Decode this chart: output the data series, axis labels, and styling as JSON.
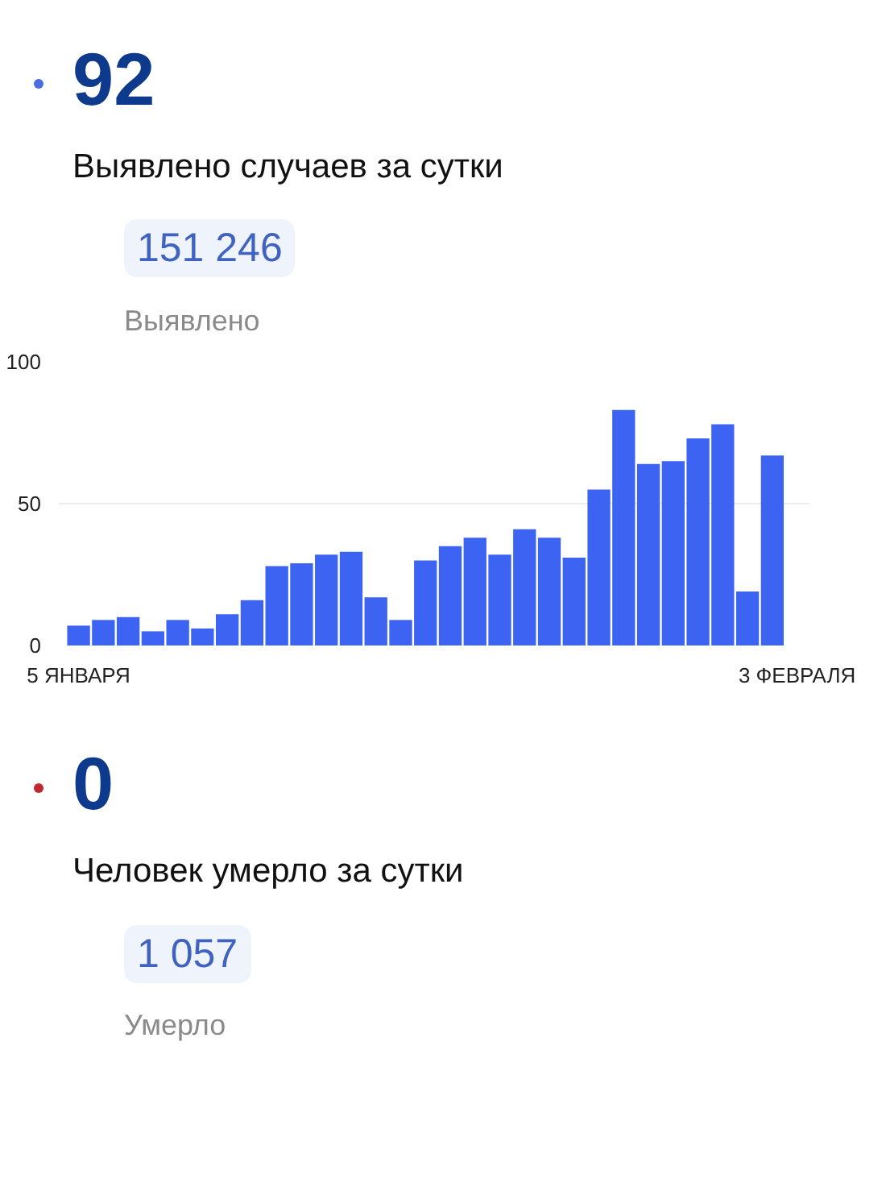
{
  "chart_data": {
    "type": "bar",
    "annotations": [
      "92",
      "Выявлено случаев за сутки",
      "151 246",
      "Выявлено",
      "0",
      "Человек умерло за сутки",
      "1 057",
      "Умерло"
    ],
    "categories": [
      "5 ЯНВАРЯ",
      null,
      null,
      null,
      null,
      null,
      null,
      null,
      null,
      null,
      null,
      null,
      null,
      null,
      null,
      null,
      null,
      null,
      null,
      null,
      null,
      null,
      null,
      null,
      null,
      null,
      null,
      null,
      null,
      "3 ФЕВРАЛЯ"
    ],
    "values": [
      7,
      9,
      10,
      5,
      9,
      6,
      11,
      16,
      28,
      29,
      32,
      33,
      17,
      9,
      30,
      35,
      38,
      32,
      41,
      38,
      31,
      55,
      83,
      64,
      65,
      73,
      78,
      19,
      67,
      null
    ],
    "color": "#3d63f2",
    "ylim": [
      0,
      100
    ],
    "yticks": [
      0,
      50,
      100
    ],
    "grid": "y"
  }
}
